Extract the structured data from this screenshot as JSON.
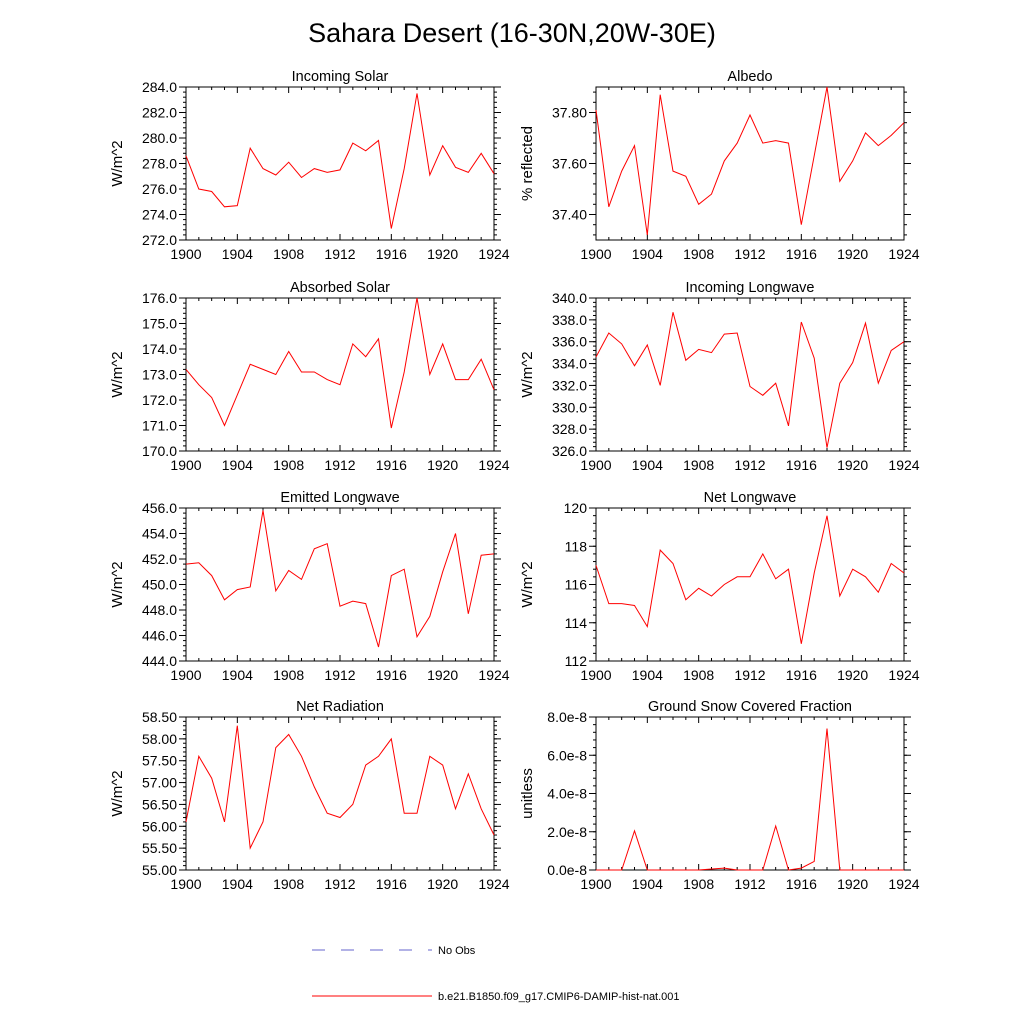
{
  "figure": {
    "title": "Sahara Desert (16-30N,20W-30E)",
    "legend": [
      {
        "label": "No Obs",
        "color": "#6666cc",
        "style": "dashed"
      },
      {
        "label": "b.e21.B1850.f09_g17.CMIP6-DAMIP-hist-nat.001",
        "color": "#ff0000",
        "style": "solid"
      }
    ]
  },
  "chart_data": [
    {
      "type": "line",
      "title": "Incoming Solar",
      "ylabel": "W/m^2",
      "xlim": [
        1900,
        1924
      ],
      "ylim": [
        272.0,
        284.0
      ],
      "xticks": [
        "1900",
        "1904",
        "1908",
        "1912",
        "1916",
        "1920",
        "1924"
      ],
      "yticks": [
        "272.0",
        "274.0",
        "276.0",
        "278.0",
        "280.0",
        "282.0",
        "284.0"
      ],
      "x": [
        1900,
        1901,
        1902,
        1903,
        1904,
        1905,
        1906,
        1907,
        1908,
        1909,
        1910,
        1911,
        1912,
        1913,
        1914,
        1915,
        1916,
        1917,
        1918,
        1919,
        1920,
        1921,
        1922,
        1923,
        1924
      ],
      "series": [
        {
          "color": "#ff0000",
          "values": [
            278.6,
            276.0,
            275.8,
            274.6,
            274.7,
            279.2,
            277.6,
            277.1,
            278.1,
            276.9,
            277.6,
            277.3,
            277.5,
            279.6,
            279.0,
            279.8,
            272.9,
            277.6,
            283.5,
            277.1,
            279.4,
            277.7,
            277.3,
            278.8,
            277.2
          ]
        }
      ]
    },
    {
      "type": "line",
      "title": "Albedo",
      "ylabel": "% reflected",
      "xlim": [
        1900,
        1924
      ],
      "ylim": [
        37.3,
        37.9
      ],
      "xticks": [
        "1900",
        "1904",
        "1908",
        "1912",
        "1916",
        "1920",
        "1924"
      ],
      "yticks": [
        "37.40",
        "37.60",
        "37.80"
      ],
      "ytick_values": [
        37.4,
        37.6,
        37.8
      ],
      "x": [
        1900,
        1901,
        1902,
        1903,
        1904,
        1905,
        1906,
        1907,
        1908,
        1909,
        1910,
        1911,
        1912,
        1913,
        1914,
        1915,
        1916,
        1917,
        1918,
        1919,
        1920,
        1921,
        1922,
        1923,
        1924
      ],
      "series": [
        {
          "color": "#ff0000",
          "values": [
            37.81,
            37.43,
            37.57,
            37.67,
            37.32,
            37.87,
            37.57,
            37.55,
            37.44,
            37.48,
            37.61,
            37.68,
            37.79,
            37.68,
            37.69,
            37.68,
            37.36,
            37.63,
            37.9,
            37.53,
            37.61,
            37.72,
            37.67,
            37.71,
            37.76
          ]
        }
      ]
    },
    {
      "type": "line",
      "title": "Absorbed Solar",
      "ylabel": "W/m^2",
      "xlim": [
        1900,
        1924
      ],
      "ylim": [
        170.0,
        176.0
      ],
      "xticks": [
        "1900",
        "1904",
        "1908",
        "1912",
        "1916",
        "1920",
        "1924"
      ],
      "yticks": [
        "170.0",
        "171.0",
        "172.0",
        "173.0",
        "174.0",
        "175.0",
        "176.0"
      ],
      "x": [
        1900,
        1901,
        1902,
        1903,
        1904,
        1905,
        1906,
        1907,
        1908,
        1909,
        1910,
        1911,
        1912,
        1913,
        1914,
        1915,
        1916,
        1917,
        1918,
        1919,
        1920,
        1921,
        1922,
        1923,
        1924
      ],
      "series": [
        {
          "color": "#ff0000",
          "values": [
            173.2,
            172.6,
            172.1,
            171.0,
            172.2,
            173.4,
            173.2,
            173.0,
            173.9,
            173.1,
            173.1,
            172.8,
            172.6,
            174.2,
            173.7,
            174.4,
            170.9,
            173.1,
            176.0,
            173.0,
            174.2,
            172.8,
            172.8,
            173.6,
            172.4
          ]
        }
      ]
    },
    {
      "type": "line",
      "title": "Incoming Longwave",
      "ylabel": "W/m^2",
      "xlim": [
        1900,
        1924
      ],
      "ylim": [
        326.0,
        340.0
      ],
      "xticks": [
        "1900",
        "1904",
        "1908",
        "1912",
        "1916",
        "1920",
        "1924"
      ],
      "yticks": [
        "326.0",
        "328.0",
        "330.0",
        "332.0",
        "334.0",
        "336.0",
        "338.0",
        "340.0"
      ],
      "x": [
        1900,
        1901,
        1902,
        1903,
        1904,
        1905,
        1906,
        1907,
        1908,
        1909,
        1910,
        1911,
        1912,
        1913,
        1914,
        1915,
        1916,
        1917,
        1918,
        1919,
        1920,
        1921,
        1922,
        1923,
        1924
      ],
      "series": [
        {
          "color": "#ff0000",
          "values": [
            334.6,
            336.8,
            335.8,
            333.8,
            335.7,
            332.0,
            338.7,
            334.3,
            335.3,
            335.0,
            336.7,
            336.8,
            331.9,
            331.1,
            332.2,
            328.3,
            337.8,
            334.5,
            326.3,
            332.2,
            334.1,
            337.7,
            332.2,
            335.2,
            336.0
          ]
        }
      ]
    },
    {
      "type": "line",
      "title": "Emitted Longwave",
      "ylabel": "W/m^2",
      "xlim": [
        1900,
        1924
      ],
      "ylim": [
        444.0,
        456.0
      ],
      "xticks": [
        "1900",
        "1904",
        "1908",
        "1912",
        "1916",
        "1920",
        "1924"
      ],
      "yticks": [
        "444.0",
        "446.0",
        "448.0",
        "450.0",
        "452.0",
        "454.0",
        "456.0"
      ],
      "x": [
        1900,
        1901,
        1902,
        1903,
        1904,
        1905,
        1906,
        1907,
        1908,
        1909,
        1910,
        1911,
        1912,
        1913,
        1914,
        1915,
        1916,
        1917,
        1918,
        1919,
        1920,
        1921,
        1922,
        1923,
        1924
      ],
      "series": [
        {
          "color": "#ff0000",
          "values": [
            451.6,
            451.7,
            450.7,
            448.8,
            449.6,
            449.8,
            455.8,
            449.5,
            451.1,
            450.4,
            452.8,
            453.2,
            448.3,
            448.7,
            448.5,
            445.1,
            450.7,
            451.2,
            445.9,
            447.5,
            451.0,
            454.0,
            447.7,
            452.3,
            452.4
          ]
        }
      ]
    },
    {
      "type": "line",
      "title": "Net Longwave",
      "ylabel": "W/m^2",
      "xlim": [
        1900,
        1924
      ],
      "ylim": [
        112,
        120
      ],
      "xticks": [
        "1900",
        "1904",
        "1908",
        "1912",
        "1916",
        "1920",
        "1924"
      ],
      "yticks": [
        "112",
        "114",
        "116",
        "118",
        "120"
      ],
      "x": [
        1900,
        1901,
        1902,
        1903,
        1904,
        1905,
        1906,
        1907,
        1908,
        1909,
        1910,
        1911,
        1912,
        1913,
        1914,
        1915,
        1916,
        1917,
        1918,
        1919,
        1920,
        1921,
        1922,
        1923,
        1924
      ],
      "series": [
        {
          "color": "#ff0000",
          "values": [
            117.0,
            115.0,
            115.0,
            114.9,
            113.8,
            117.8,
            117.1,
            115.2,
            115.8,
            115.4,
            116.0,
            116.4,
            116.4,
            117.6,
            116.3,
            116.8,
            112.9,
            116.6,
            119.6,
            115.4,
            116.8,
            116.4,
            115.6,
            117.1,
            116.6
          ]
        }
      ]
    },
    {
      "type": "line",
      "title": "Net Radiation",
      "ylabel": "W/m^2",
      "xlim": [
        1900,
        1924
      ],
      "ylim": [
        55.0,
        58.5
      ],
      "xticks": [
        "1900",
        "1904",
        "1908",
        "1912",
        "1916",
        "1920",
        "1924"
      ],
      "yticks": [
        "55.00",
        "55.50",
        "56.00",
        "56.50",
        "57.00",
        "57.50",
        "58.00",
        "58.50"
      ],
      "ytick_values": [
        55.0,
        55.5,
        56.0,
        56.5,
        57.0,
        57.5,
        58.0,
        58.5
      ],
      "x": [
        1900,
        1901,
        1902,
        1903,
        1904,
        1905,
        1906,
        1907,
        1908,
        1909,
        1910,
        1911,
        1912,
        1913,
        1914,
        1915,
        1916,
        1917,
        1918,
        1919,
        1920,
        1921,
        1922,
        1923,
        1924
      ],
      "series": [
        {
          "color": "#ff0000",
          "values": [
            56.1,
            57.6,
            57.1,
            56.1,
            58.3,
            55.5,
            56.1,
            57.8,
            58.1,
            57.6,
            56.9,
            56.3,
            56.2,
            56.5,
            57.4,
            57.6,
            58.0,
            56.3,
            56.3,
            57.6,
            57.4,
            56.4,
            57.2,
            56.4,
            55.8
          ]
        }
      ]
    },
    {
      "type": "line",
      "title": "Ground Snow Covered Fraction",
      "ylabel": "unitless",
      "xlim": [
        1900,
        1924
      ],
      "ylim": [
        0.0,
        8e-08
      ],
      "xticks": [
        "1900",
        "1904",
        "1908",
        "1912",
        "1916",
        "1920",
        "1924"
      ],
      "yticks": [
        "0.0e-8",
        "2.0e-8",
        "4.0e-8",
        "6.0e-8",
        "8.0e-8"
      ],
      "ytick_values": [
        0.0,
        2e-08,
        4e-08,
        6e-08,
        8e-08
      ],
      "x": [
        1900,
        1901,
        1902,
        1903,
        1904,
        1905,
        1906,
        1907,
        1908,
        1909,
        1910,
        1911,
        1912,
        1913,
        1914,
        1915,
        1916,
        1917,
        1918,
        1919,
        1920,
        1921,
        1922,
        1923,
        1924
      ],
      "series": [
        {
          "color": "#ff0000",
          "values": [
            0,
            0,
            0,
            2.05e-08,
            0,
            0,
            0,
            0,
            0,
            5e-10,
            1e-09,
            0,
            0,
            0,
            2.3e-08,
            0,
            1e-09,
            4.5e-09,
            7.4e-08,
            0,
            0,
            0,
            0,
            0,
            0
          ]
        }
      ]
    }
  ]
}
